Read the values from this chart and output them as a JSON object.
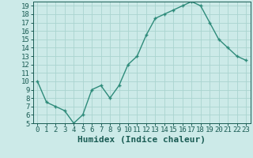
{
  "x": [
    0,
    1,
    2,
    3,
    4,
    5,
    6,
    7,
    8,
    9,
    10,
    11,
    12,
    13,
    14,
    15,
    16,
    17,
    18,
    19,
    20,
    21,
    22,
    23
  ],
  "y": [
    10,
    7.5,
    7,
    6.5,
    5,
    6,
    9,
    9.5,
    8,
    9.5,
    12,
    13,
    15.5,
    17.5,
    18,
    18.5,
    19,
    19.5,
    19,
    17,
    15,
    14,
    13,
    12.5
  ],
  "xlabel": "Humidex (Indice chaleur)",
  "line_color": "#2e8b7a",
  "bg_color": "#cceae8",
  "grid_color": "#aad4d0",
  "xlim": [
    -0.5,
    23.5
  ],
  "ylim": [
    5,
    19.5
  ],
  "yticks": [
    5,
    6,
    7,
    8,
    9,
    10,
    11,
    12,
    13,
    14,
    15,
    16,
    17,
    18,
    19
  ],
  "xticks": [
    0,
    1,
    2,
    3,
    4,
    5,
    6,
    7,
    8,
    9,
    10,
    11,
    12,
    13,
    14,
    15,
    16,
    17,
    18,
    19,
    20,
    21,
    22,
    23
  ],
  "tick_fontsize": 6.5,
  "xlabel_fontsize": 8
}
